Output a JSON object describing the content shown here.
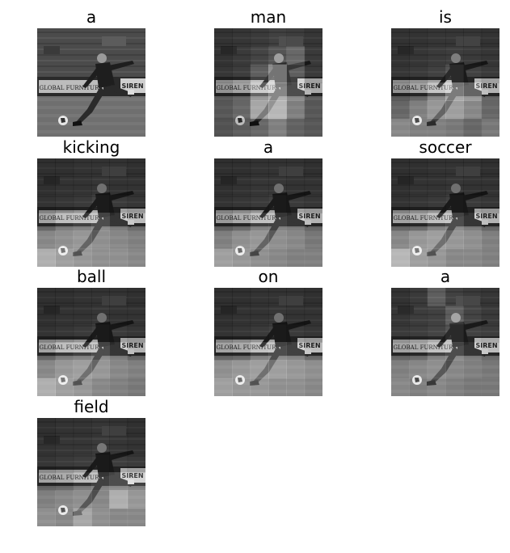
{
  "figure": {
    "panels": [
      {
        "word": "a",
        "attention": null
      },
      {
        "word": "man",
        "attention": [
          [
            0.2,
            0.25,
            0.3,
            0.4,
            0.35,
            0.25
          ],
          [
            0.2,
            0.3,
            0.45,
            0.5,
            0.6,
            0.3
          ],
          [
            0.25,
            0.35,
            0.55,
            0.8,
            0.55,
            0.3
          ],
          [
            0.3,
            0.4,
            0.7,
            0.85,
            0.6,
            0.35
          ],
          [
            0.3,
            0.45,
            0.8,
            0.9,
            0.55,
            0.3
          ],
          [
            0.25,
            0.35,
            0.45,
            0.55,
            0.4,
            0.3
          ]
        ]
      },
      {
        "word": "is",
        "attention": [
          [
            0.2,
            0.2,
            0.25,
            0.25,
            0.25,
            0.2
          ],
          [
            0.2,
            0.25,
            0.3,
            0.35,
            0.3,
            0.25
          ],
          [
            0.25,
            0.3,
            0.4,
            0.5,
            0.4,
            0.3
          ],
          [
            0.3,
            0.4,
            0.6,
            0.8,
            0.7,
            0.4
          ],
          [
            0.45,
            0.55,
            0.7,
            0.75,
            0.6,
            0.45
          ],
          [
            0.6,
            0.55,
            0.55,
            0.5,
            0.45,
            0.5
          ]
        ]
      },
      {
        "word": "kicking",
        "attention": [
          [
            0.15,
            0.15,
            0.2,
            0.2,
            0.2,
            0.15
          ],
          [
            0.15,
            0.2,
            0.2,
            0.25,
            0.2,
            0.2
          ],
          [
            0.2,
            0.25,
            0.3,
            0.45,
            0.3,
            0.25
          ],
          [
            0.4,
            0.5,
            0.55,
            0.6,
            0.5,
            0.45
          ],
          [
            0.6,
            0.65,
            0.7,
            0.65,
            0.6,
            0.55
          ],
          [
            0.85,
            0.75,
            0.7,
            0.65,
            0.65,
            0.6
          ]
        ]
      },
      {
        "word": "a",
        "attention": [
          [
            0.15,
            0.15,
            0.2,
            0.2,
            0.2,
            0.15
          ],
          [
            0.15,
            0.2,
            0.25,
            0.25,
            0.2,
            0.2
          ],
          [
            0.2,
            0.25,
            0.3,
            0.4,
            0.3,
            0.25
          ],
          [
            0.35,
            0.45,
            0.55,
            0.55,
            0.5,
            0.4
          ],
          [
            0.55,
            0.65,
            0.7,
            0.65,
            0.6,
            0.5
          ],
          [
            0.75,
            0.7,
            0.65,
            0.6,
            0.55,
            0.55
          ]
        ]
      },
      {
        "word": "soccer",
        "attention": [
          [
            0.15,
            0.15,
            0.2,
            0.2,
            0.2,
            0.15
          ],
          [
            0.15,
            0.2,
            0.2,
            0.25,
            0.2,
            0.2
          ],
          [
            0.2,
            0.25,
            0.3,
            0.4,
            0.3,
            0.25
          ],
          [
            0.4,
            0.45,
            0.55,
            0.6,
            0.5,
            0.4
          ],
          [
            0.6,
            0.7,
            0.75,
            0.7,
            0.65,
            0.55
          ],
          [
            0.9,
            0.75,
            0.7,
            0.6,
            0.6,
            0.55
          ]
        ]
      },
      {
        "word": "ball",
        "attention": [
          [
            0.15,
            0.15,
            0.2,
            0.2,
            0.2,
            0.15
          ],
          [
            0.15,
            0.2,
            0.2,
            0.25,
            0.2,
            0.2
          ],
          [
            0.2,
            0.25,
            0.3,
            0.4,
            0.3,
            0.25
          ],
          [
            0.4,
            0.5,
            0.55,
            0.6,
            0.5,
            0.4
          ],
          [
            0.6,
            0.7,
            0.75,
            0.7,
            0.6,
            0.55
          ],
          [
            0.85,
            0.75,
            0.7,
            0.6,
            0.55,
            0.5
          ]
        ]
      },
      {
        "word": "on",
        "attention": [
          [
            0.15,
            0.15,
            0.2,
            0.2,
            0.2,
            0.15
          ],
          [
            0.15,
            0.2,
            0.2,
            0.25,
            0.2,
            0.2
          ],
          [
            0.2,
            0.25,
            0.3,
            0.4,
            0.3,
            0.25
          ],
          [
            0.4,
            0.45,
            0.55,
            0.6,
            0.55,
            0.45
          ],
          [
            0.65,
            0.7,
            0.75,
            0.75,
            0.7,
            0.65
          ],
          [
            0.75,
            0.7,
            0.7,
            0.65,
            0.65,
            0.6
          ]
        ]
      },
      {
        "word": "a",
        "attention": [
          [
            0.2,
            0.3,
            0.55,
            0.4,
            0.3,
            0.25
          ],
          [
            0.25,
            0.35,
            0.4,
            0.55,
            0.45,
            0.3
          ],
          [
            0.3,
            0.35,
            0.45,
            0.5,
            0.4,
            0.35
          ],
          [
            0.4,
            0.45,
            0.55,
            0.6,
            0.5,
            0.45
          ],
          [
            0.55,
            0.6,
            0.65,
            0.6,
            0.55,
            0.5
          ],
          [
            0.6,
            0.55,
            0.6,
            0.55,
            0.5,
            0.5
          ]
        ]
      },
      {
        "word": "field",
        "attention": [
          [
            0.15,
            0.2,
            0.2,
            0.25,
            0.2,
            0.15
          ],
          [
            0.2,
            0.25,
            0.25,
            0.3,
            0.25,
            0.2
          ],
          [
            0.25,
            0.3,
            0.35,
            0.4,
            0.35,
            0.3
          ],
          [
            0.4,
            0.45,
            0.5,
            0.55,
            0.6,
            0.55
          ],
          [
            0.55,
            0.6,
            0.65,
            0.6,
            0.85,
            0.7
          ],
          [
            0.65,
            0.6,
            0.8,
            0.65,
            0.6,
            0.6
          ]
        ]
      }
    ],
    "photo": {
      "sign_left": "GLOBAL FURNITURE",
      "sign_right": "SIREN"
    }
  }
}
